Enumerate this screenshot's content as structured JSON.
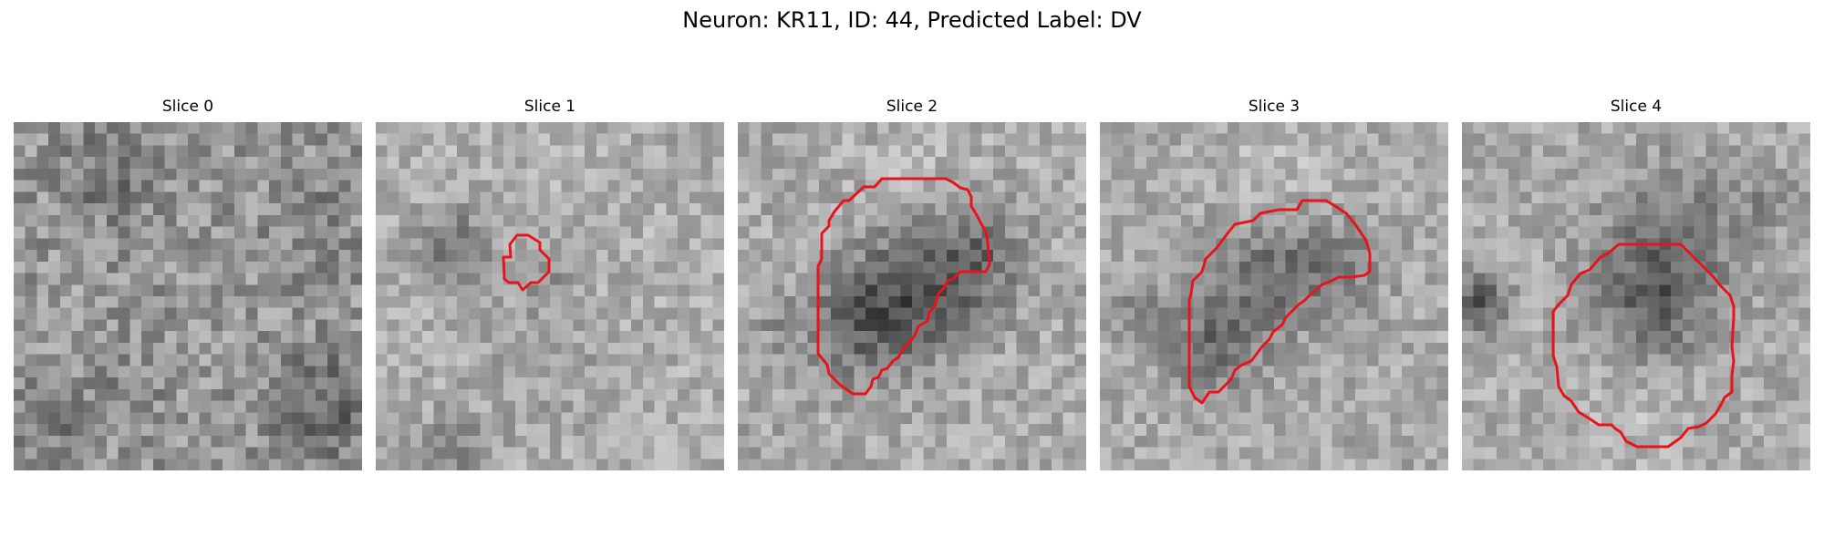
{
  "figure": {
    "title": "Neuron: KR11, ID: 44, Predicted Label: DV",
    "contour_color": "#e8141a"
  },
  "panels": [
    {
      "title": "Slice 0",
      "has_contour": false
    },
    {
      "title": "Slice 1",
      "has_contour": true
    },
    {
      "title": "Slice 2",
      "has_contour": true
    },
    {
      "title": "Slice 3",
      "has_contour": true
    },
    {
      "title": "Slice 4",
      "has_contour": true
    }
  ]
}
